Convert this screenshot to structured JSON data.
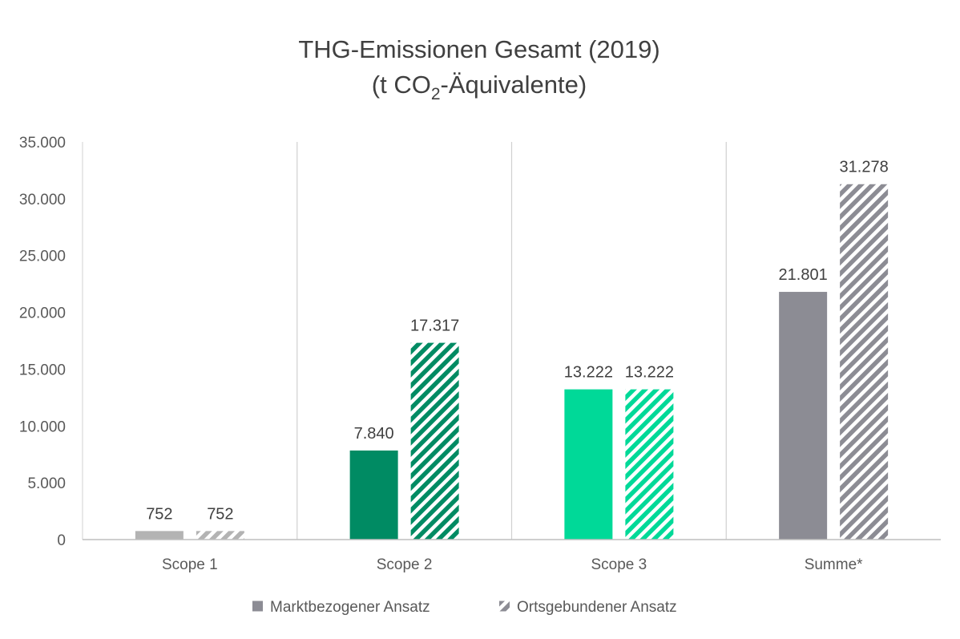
{
  "chart_data": {
    "type": "bar",
    "title_line1": "THG-Emissionen Gesamt (2019)",
    "title_line2_prefix": "(t CO",
    "title_line2_subscript": "2",
    "title_line2_suffix": "-Äquivalente)",
    "categories": [
      "Scope 1",
      "Scope 2",
      "Scope 3",
      "Summe*"
    ],
    "series": [
      {
        "name": "Marktbezogener Ansatz",
        "values": [
          752,
          7840,
          13222,
          21801
        ],
        "labels": [
          "752",
          "7.840",
          "13.222",
          "21.801"
        ],
        "fill": "solid"
      },
      {
        "name": "Ortsgebundener Ansatz",
        "values": [
          752,
          17317,
          13222,
          31278
        ],
        "labels": [
          "752",
          "17.317",
          "13.222",
          "31.278"
        ],
        "fill": "hatched"
      }
    ],
    "category_colors": [
      "#b3b3b3",
      "#008b63",
      "#00d998",
      "#8c8c94"
    ],
    "legend_color": "#8c8c94",
    "ylim": [
      0,
      35000
    ],
    "yticks": [
      0,
      5000,
      10000,
      15000,
      20000,
      25000,
      30000,
      35000
    ],
    "ytick_labels": [
      "0",
      "5.000",
      "10.000",
      "15.000",
      "20.000",
      "25.000",
      "30.000",
      "35.000"
    ],
    "xlabel": "",
    "ylabel": "",
    "grid": "vertical category separators",
    "legend_position": "bottom"
  }
}
